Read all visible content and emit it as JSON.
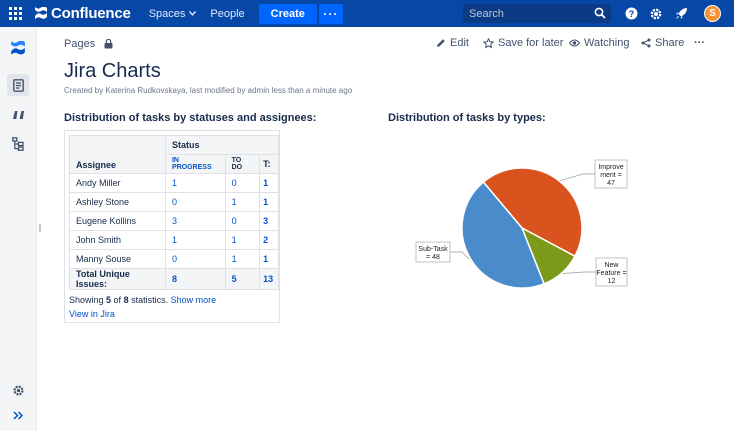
{
  "topbar": {
    "logo": "Confluence",
    "spaces": "Spaces",
    "people": "People",
    "create": "Create",
    "more": "···",
    "search_placeholder": "Search",
    "avatar_letter": "S"
  },
  "breadcrumb": {
    "pages": "Pages"
  },
  "actions": {
    "edit": "Edit",
    "save_for_later": "Save for later",
    "watching": "Watching",
    "share": "Share",
    "more": "···"
  },
  "page": {
    "title": "Jira Charts",
    "byline": "Created by Katerina Rudkovskaya, last modified by admin less than a minute ago"
  },
  "table_section": {
    "title": "Distribution of tasks by statuses and assignees:",
    "header_assignee": "Assignee",
    "header_status": "Status",
    "col_inprogress": "IN PROGRESS",
    "col_todo": "TO DO",
    "col_total": "T:",
    "rows": [
      {
        "name": "Andy Miller",
        "inprogress": "1",
        "todo": "0",
        "total": "1"
      },
      {
        "name": "Ashley Stone",
        "inprogress": "0",
        "todo": "1",
        "total": "1"
      },
      {
        "name": "Eugene Kollins",
        "inprogress": "3",
        "todo": "0",
        "total": "3"
      },
      {
        "name": "John Smith",
        "inprogress": "1",
        "todo": "1",
        "total": "2"
      },
      {
        "name": "Manny Souse",
        "inprogress": "0",
        "todo": "1",
        "total": "1"
      }
    ],
    "total_row": {
      "name": "Total Unique Issues:",
      "inprogress": "8",
      "todo": "5",
      "total": "13"
    },
    "showing_prefix": "Showing ",
    "showing_count": "5",
    "showing_of": " of ",
    "showing_total": "8",
    "showing_suffix": " statistics. ",
    "show_more": "Show more",
    "view_in_jira": "View in Jira"
  },
  "chart_section": {
    "title": "Distribution of tasks by types:"
  },
  "chart_data": {
    "type": "pie",
    "title": "",
    "slices": [
      {
        "label": "Improve ment = 47",
        "value": 47,
        "color": "#d9531e"
      },
      {
        "label": "New Feature = 12",
        "value": 12,
        "color": "#7b9a1a"
      },
      {
        "label": "Sub-Task = 48",
        "value": 48,
        "color": "#4a8ccb"
      }
    ]
  },
  "colors": {
    "topbar": "#0747a6",
    "accent": "#0065ff",
    "link": "#0052cc"
  },
  "icons": {
    "sidebar": [
      "confluence-logo-icon",
      "pages-icon",
      "quote-icon",
      "tree-icon",
      "settings-icon",
      "expand-icon"
    ]
  }
}
